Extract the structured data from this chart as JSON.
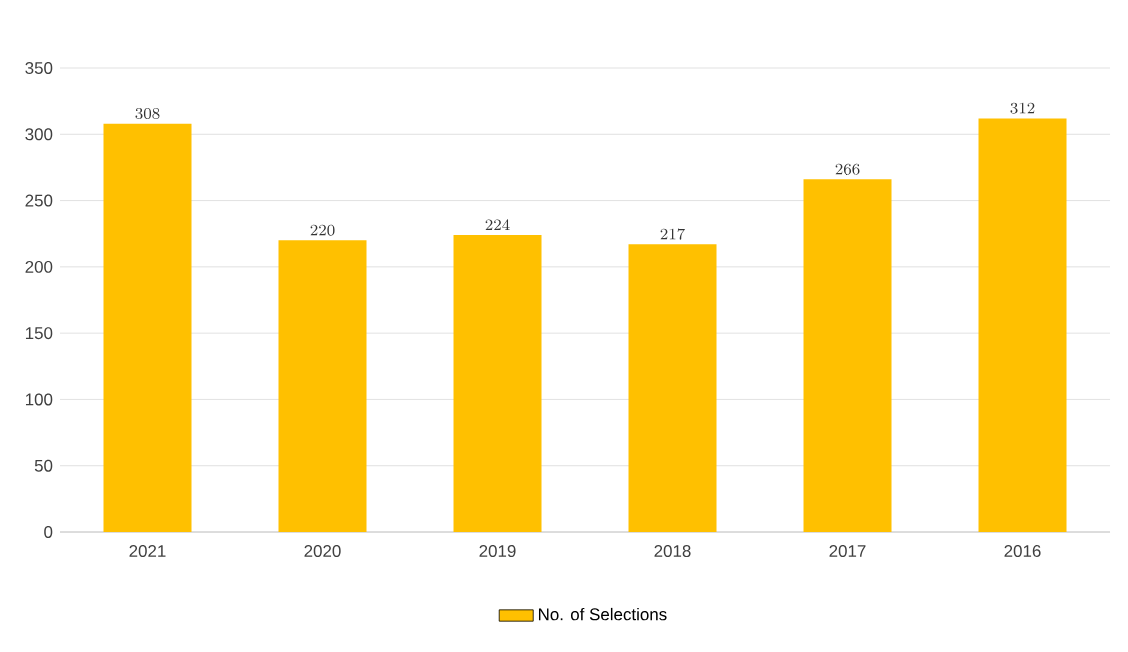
{
  "chart_data": {
    "type": "bar",
    "categories": [
      "2021",
      "2020",
      "2019",
      "2018",
      "2017",
      "2016"
    ],
    "series": [
      {
        "name": "No. of Selections",
        "color": "#ffc000",
        "values": [
          308,
          220,
          224,
          217,
          266,
          312
        ]
      }
    ],
    "ylim": [
      0,
      350
    ],
    "yticks": [
      0,
      50,
      100,
      150,
      200,
      250,
      300,
      350
    ],
    "grid": "y",
    "legend": "bottom",
    "data_labels": true
  }
}
